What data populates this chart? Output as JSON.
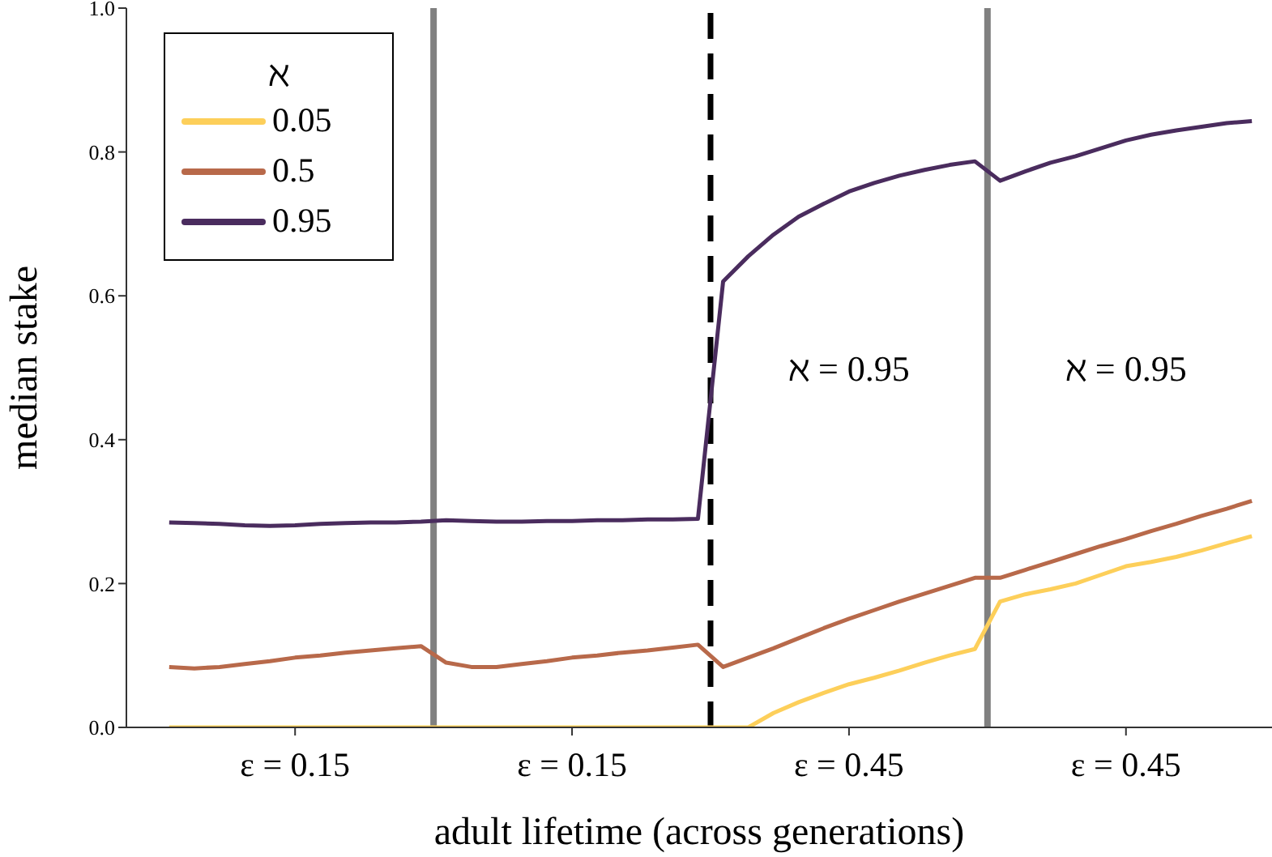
{
  "chart_data": {
    "type": "line",
    "xlabel": "adult lifetime (across generations)",
    "ylabel": "median stake",
    "legend_title": "ℵ",
    "legend": "top left",
    "grid": false,
    "marker": "none",
    "line_style": "solid",
    "categories": [
      null,
      null,
      null,
      null,
      null,
      "ε = 0.15",
      null,
      null,
      null,
      null,
      null,
      null,
      null,
      null,
      null,
      null,
      "ε = 0.15",
      null,
      null,
      null,
      null,
      null,
      null,
      null,
      null,
      null,
      null,
      "ε = 0.45",
      null,
      null,
      null,
      null,
      null,
      null,
      null,
      null,
      null,
      null,
      "ε = 0.45",
      null,
      null,
      null,
      null,
      null
    ],
    "ylim": [
      0,
      1
    ],
    "yticks": [
      {
        "value": 0,
        "label": "0.0"
      },
      0.2,
      0.4,
      0.6,
      0.8,
      {
        "value": 1,
        "label": "1.0"
      }
    ],
    "series": [
      {
        "name": "0.05",
        "color": "#fdcf5a",
        "values": [
          0,
          0,
          0,
          0,
          0,
          0,
          0,
          0,
          0,
          0,
          0,
          0,
          0,
          0,
          0,
          0,
          0,
          0,
          0,
          0,
          0,
          0,
          0,
          0,
          0.02,
          0.035,
          0.048,
          0.06,
          0.069,
          0.079,
          0.09,
          0.1,
          0.109,
          0.175,
          0.185,
          0.192,
          0.2,
          0.212,
          0.224,
          0.23,
          0.237,
          0.246,
          0.256,
          0.266
        ]
      },
      {
        "name": "0.5",
        "color": "#b8694a",
        "values": [
          0.084,
          0.082,
          0.084,
          0.088,
          0.092,
          0.097,
          0.1,
          0.104,
          0.107,
          0.11,
          0.113,
          0.09,
          0.084,
          0.084,
          0.088,
          0.092,
          0.097,
          0.1,
          0.104,
          0.107,
          0.111,
          0.115,
          0.084,
          0.097,
          0.11,
          0.124,
          0.138,
          0.151,
          0.163,
          0.175,
          0.186,
          0.197,
          0.208,
          0.208,
          0.219,
          0.23,
          0.241,
          0.252,
          0.262,
          0.273,
          0.283,
          0.294,
          0.304,
          0.315
        ]
      },
      {
        "name": "0.95",
        "color": "#4a2c5e",
        "values": [
          0.285,
          0.284,
          0.283,
          0.281,
          0.28,
          0.281,
          0.283,
          0.284,
          0.285,
          0.285,
          0.286,
          0.288,
          0.287,
          0.286,
          0.286,
          0.287,
          0.287,
          0.288,
          0.288,
          0.289,
          0.289,
          0.29,
          0.62,
          0.655,
          0.685,
          0.71,
          0.728,
          0.745,
          0.757,
          0.767,
          0.775,
          0.782,
          0.787,
          0.76,
          0.773,
          0.785,
          0.794,
          0.805,
          0.816,
          0.824,
          0.83,
          0.835,
          0.84,
          0.843
        ]
      }
    ],
    "annotations": [
      "ℵ = 0.95",
      "ℵ = 0.95"
    ]
  }
}
